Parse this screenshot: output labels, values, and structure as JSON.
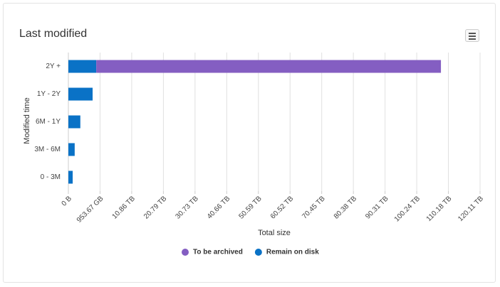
{
  "chart_data": {
    "type": "stacked-bar-horizontal",
    "title": "Last modified",
    "x_label": "Total size",
    "y_label": "Modified time",
    "categories": [
      "2Y +",
      "1Y - 2Y",
      "6M - 1Y",
      "3M - 6M",
      "0 - 3M"
    ],
    "series": [
      {
        "name": "Remain on disk",
        "color": "#0a72c6",
        "values": [
          0.84,
          0.73,
          0.36,
          0.19,
          0.13
        ]
      },
      {
        "name": "To be archived",
        "color": "#845ec2",
        "values": [
          107,
          0,
          0,
          0,
          0
        ]
      }
    ],
    "legend_order": [
      1,
      0
    ],
    "xticks": [
      {
        "value": 0,
        "label": "0 B"
      },
      {
        "value": 0.95367,
        "label": "953.67 GB"
      },
      {
        "value": 10.86,
        "label": "10.86 TB"
      },
      {
        "value": 20.79,
        "label": "20.79 TB"
      },
      {
        "value": 30.73,
        "label": "30.73 TB"
      },
      {
        "value": 40.66,
        "label": "40.66 TB"
      },
      {
        "value": 50.59,
        "label": "50.59 TB"
      },
      {
        "value": 60.52,
        "label": "60.52 TB"
      },
      {
        "value": 70.45,
        "label": "70.45 TB"
      },
      {
        "value": 80.38,
        "label": "80.38 TB"
      },
      {
        "value": 90.31,
        "label": "90.31 TB"
      },
      {
        "value": 100.24,
        "label": "100.24 TB"
      },
      {
        "value": 110.18,
        "label": "110.18 TB"
      },
      {
        "value": 120.11,
        "label": "120.11 TB"
      }
    ],
    "xlim": [
      0,
      120.11
    ],
    "grid": true
  }
}
